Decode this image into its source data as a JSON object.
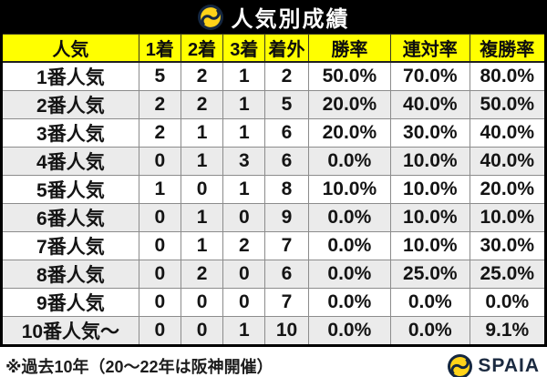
{
  "title_bar": {
    "title": "人気別成績",
    "logo_icon": "spaia-swirl-icon"
  },
  "colors": {
    "title_bar_bg": "#000000",
    "header_bg": "#ffff00",
    "row_alt_bg": "#ebebeb",
    "grid_line": "#8c8c8c",
    "brand_navy": "#152740",
    "brand_yellow": "#ffd319"
  },
  "chart_data": {
    "type": "table",
    "title": "人気別成績",
    "columns": [
      "人気",
      "1着",
      "2着",
      "3着",
      "着外",
      "勝率",
      "連対率",
      "複勝率"
    ],
    "rows": [
      {
        "label": "1番人気",
        "values": [
          "5",
          "2",
          "1",
          "2",
          "50.0%",
          "70.0%",
          "80.0%"
        ]
      },
      {
        "label": "2番人気",
        "values": [
          "2",
          "2",
          "1",
          "5",
          "20.0%",
          "40.0%",
          "50.0%"
        ]
      },
      {
        "label": "3番人気",
        "values": [
          "2",
          "1",
          "1",
          "6",
          "20.0%",
          "30.0%",
          "40.0%"
        ]
      },
      {
        "label": "4番人気",
        "values": [
          "0",
          "1",
          "3",
          "6",
          "0.0%",
          "10.0%",
          "40.0%"
        ]
      },
      {
        "label": "5番人気",
        "values": [
          "1",
          "0",
          "1",
          "8",
          "10.0%",
          "10.0%",
          "20.0%"
        ]
      },
      {
        "label": "6番人気",
        "values": [
          "0",
          "1",
          "0",
          "9",
          "0.0%",
          "10.0%",
          "10.0%"
        ]
      },
      {
        "label": "7番人気",
        "values": [
          "0",
          "1",
          "2",
          "7",
          "0.0%",
          "10.0%",
          "30.0%"
        ]
      },
      {
        "label": "8番人気",
        "values": [
          "0",
          "2",
          "0",
          "6",
          "0.0%",
          "25.0%",
          "25.0%"
        ]
      },
      {
        "label": "9番人気",
        "values": [
          "0",
          "0",
          "0",
          "7",
          "0.0%",
          "0.0%",
          "0.0%"
        ]
      },
      {
        "label": "10番人気～",
        "values": [
          "0",
          "0",
          "1",
          "10",
          "0.0%",
          "0.0%",
          "9.1%"
        ]
      }
    ]
  },
  "footer": {
    "note": "※過去10年（20～22年は阪神開催）",
    "brand": "SPAIA"
  }
}
